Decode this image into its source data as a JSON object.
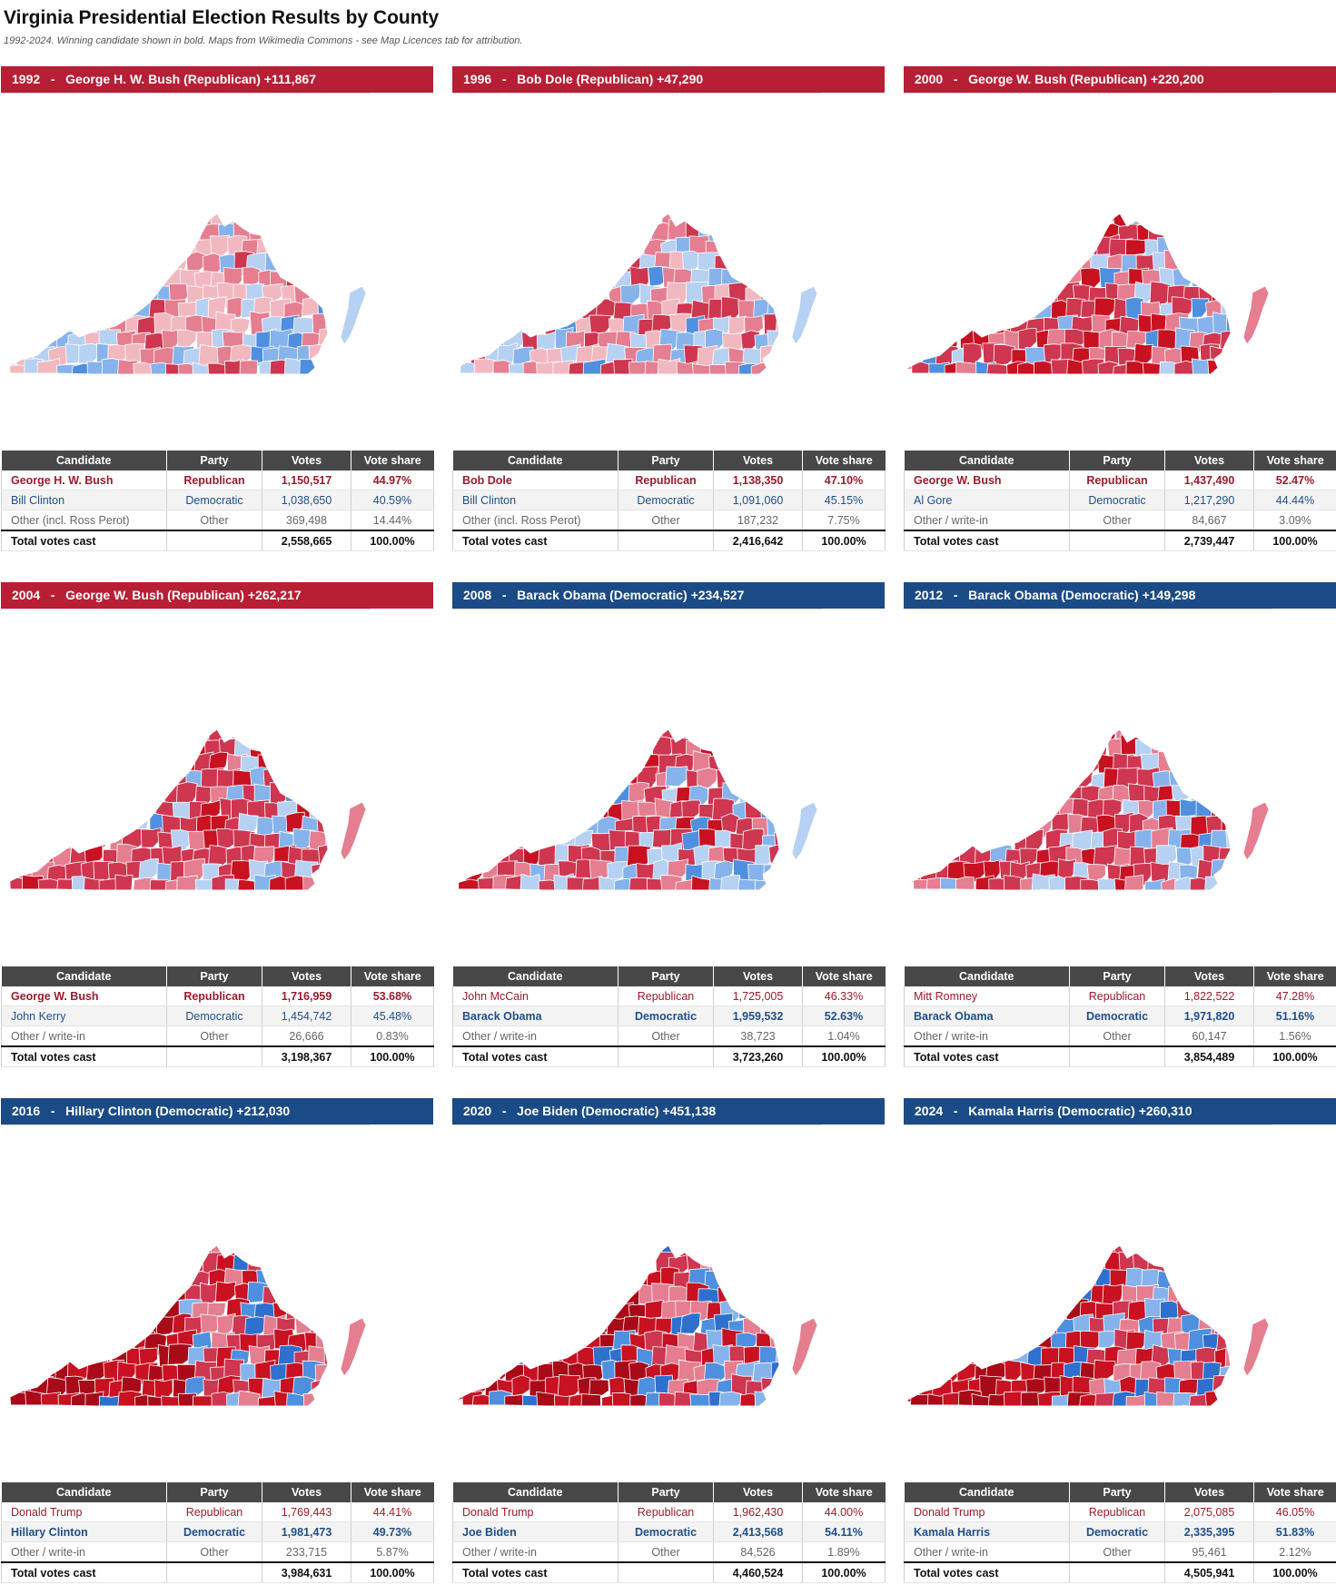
{
  "title": "Virginia Presidential Election Results by County",
  "subtitle": "1992-2024. Winning candidate shown in bold. Maps from Wikimedia Commons - see Map Licences tab for attribution.",
  "table_headers": [
    "Candidate",
    "Party",
    "Votes",
    "Vote share"
  ],
  "colors": {
    "republican": "#b81e34",
    "democratic": "#1b4b86",
    "header_gray": "#484848"
  },
  "map_palette": {
    "r_light": "#f2b8c0",
    "r_mid": "#e57e90",
    "r_strong": "#cf3650",
    "r_solid": "#c81121",
    "r_dark": "#a90a18",
    "d_light": "#b7d1f3",
    "d_mid": "#86b3ec",
    "d_strong": "#4f8fe0",
    "d_solid": "#2f6fce"
  },
  "panels": [
    {
      "year": "1992",
      "sep": "-",
      "headline": "George H. W. Bush (Republican) +111,867",
      "winner_party": "rep",
      "map_shade": 0.15,
      "rows": [
        {
          "candidate": "George H. W. Bush",
          "party": "Republican",
          "votes": "1,150,517",
          "share": "44.97%",
          "cls": "rep",
          "win": true
        },
        {
          "candidate": "Bill Clinton",
          "party": "Democratic",
          "votes": "1,038,650",
          "share": "40.59%",
          "cls": "dem",
          "win": false
        },
        {
          "candidate": "Other (incl. Ross Perot)",
          "party": "Other",
          "votes": "369,498",
          "share": "14.44%",
          "cls": "other",
          "win": false
        }
      ],
      "total_label": "Total votes cast",
      "total_votes": "2,558,665",
      "total_share": "100.00%"
    },
    {
      "year": "1996",
      "sep": "-",
      "headline": "Bob Dole (Republican) +47,290",
      "winner_party": "rep",
      "map_shade": 0.1,
      "rows": [
        {
          "candidate": "Bob Dole",
          "party": "Republican",
          "votes": "1,138,350",
          "share": "47.10%",
          "cls": "rep",
          "win": true
        },
        {
          "candidate": "Bill Clinton",
          "party": "Democratic",
          "votes": "1,091,060",
          "share": "45.15%",
          "cls": "dem",
          "win": false
        },
        {
          "candidate": "Other (incl. Ross Perot)",
          "party": "Other",
          "votes": "187,232",
          "share": "7.75%",
          "cls": "other",
          "win": false
        }
      ],
      "total_label": "Total votes cast",
      "total_votes": "2,416,642",
      "total_share": "100.00%"
    },
    {
      "year": "2000",
      "sep": "-",
      "headline": "George W. Bush (Republican) +220,200",
      "winner_party": "rep",
      "map_shade": 0.55,
      "rows": [
        {
          "candidate": "George W. Bush",
          "party": "Republican",
          "votes": "1,437,490",
          "share": "52.47%",
          "cls": "rep",
          "win": true
        },
        {
          "candidate": "Al Gore",
          "party": "Democratic",
          "votes": "1,217,290",
          "share": "44.44%",
          "cls": "dem",
          "win": false
        },
        {
          "candidate": "Other / write-in",
          "party": "Other",
          "votes": "84,667",
          "share": "3.09%",
          "cls": "other",
          "win": false
        }
      ],
      "total_label": "Total votes cast",
      "total_votes": "2,739,447",
      "total_share": "100.00%"
    },
    {
      "year": "2004",
      "sep": "-",
      "headline": "George W. Bush (Republican) +262,217",
      "winner_party": "rep",
      "map_shade": 0.6,
      "rows": [
        {
          "candidate": "George W. Bush",
          "party": "Republican",
          "votes": "1,716,959",
          "share": "53.68%",
          "cls": "rep",
          "win": true
        },
        {
          "candidate": "John Kerry",
          "party": "Democratic",
          "votes": "1,454,742",
          "share": "45.48%",
          "cls": "dem",
          "win": false
        },
        {
          "candidate": "Other / write-in",
          "party": "Other",
          "votes": "26,666",
          "share": "0.83%",
          "cls": "other",
          "win": false
        }
      ],
      "total_label": "Total votes cast",
      "total_votes": "3,198,367",
      "total_share": "100.00%"
    },
    {
      "year": "2008",
      "sep": "-",
      "headline": "Barack Obama (Democratic) +234,527",
      "winner_party": "dem",
      "map_shade": 0.45,
      "rows": [
        {
          "candidate": "John McCain",
          "party": "Republican",
          "votes": "1,725,005",
          "share": "46.33%",
          "cls": "rep",
          "win": false
        },
        {
          "candidate": "Barack Obama",
          "party": "Democratic",
          "votes": "1,959,532",
          "share": "52.63%",
          "cls": "dem",
          "win": true
        },
        {
          "candidate": "Other / write-in",
          "party": "Other",
          "votes": "38,723",
          "share": "1.04%",
          "cls": "other",
          "win": false
        }
      ],
      "total_label": "Total votes cast",
      "total_votes": "3,723,260",
      "total_share": "100.00%"
    },
    {
      "year": "2012",
      "sep": "-",
      "headline": "Barack Obama (Democratic) +149,298",
      "winner_party": "dem",
      "map_shade": 0.5,
      "rows": [
        {
          "candidate": "Mitt Romney",
          "party": "Republican",
          "votes": "1,822,522",
          "share": "47.28%",
          "cls": "rep",
          "win": false
        },
        {
          "candidate": "Barack Obama",
          "party": "Democratic",
          "votes": "1,971,820",
          "share": "51.16%",
          "cls": "dem",
          "win": true
        },
        {
          "candidate": "Other / write-in",
          "party": "Other",
          "votes": "60,147",
          "share": "1.56%",
          "cls": "other",
          "win": false
        }
      ],
      "total_label": "Total votes cast",
      "total_votes": "3,854,489",
      "total_share": "100.00%"
    },
    {
      "year": "2016",
      "sep": "-",
      "headline": "Hillary Clinton (Democratic) +212,030",
      "winner_party": "dem",
      "map_shade": 0.75,
      "rows": [
        {
          "candidate": "Donald Trump",
          "party": "Republican",
          "votes": "1,769,443",
          "share": "44.41%",
          "cls": "rep",
          "win": false
        },
        {
          "candidate": "Hillary Clinton",
          "party": "Democratic",
          "votes": "1,981,473",
          "share": "49.73%",
          "cls": "dem",
          "win": true
        },
        {
          "candidate": "Other / write-in",
          "party": "Other",
          "votes": "233,715",
          "share": "5.87%",
          "cls": "other",
          "win": false
        }
      ],
      "total_label": "Total votes cast",
      "total_votes": "3,984,631",
      "total_share": "100.00%"
    },
    {
      "year": "2020",
      "sep": "-",
      "headline": "Joe Biden (Democratic) +451,138",
      "winner_party": "dem",
      "map_shade": 0.85,
      "rows": [
        {
          "candidate": "Donald Trump",
          "party": "Republican",
          "votes": "1,962,430",
          "share": "44.00%",
          "cls": "rep",
          "win": false
        },
        {
          "candidate": "Joe Biden",
          "party": "Democratic",
          "votes": "2,413,568",
          "share": "54.11%",
          "cls": "dem",
          "win": true
        },
        {
          "candidate": "Other / write-in",
          "party": "Other",
          "votes": "84,526",
          "share": "1.89%",
          "cls": "other",
          "win": false
        }
      ],
      "total_label": "Total votes cast",
      "total_votes": "4,460,524",
      "total_share": "100.00%"
    },
    {
      "year": "2024",
      "sep": "-",
      "headline": "Kamala Harris (Democratic) +260,310",
      "winner_party": "dem",
      "map_shade": 0.85,
      "rows": [
        {
          "candidate": "Donald Trump",
          "party": "Republican",
          "votes": "2,075,085",
          "share": "46.05%",
          "cls": "rep",
          "win": false
        },
        {
          "candidate": "Kamala Harris",
          "party": "Democratic",
          "votes": "2,335,395",
          "share": "51.83%",
          "cls": "dem",
          "win": true
        },
        {
          "candidate": "Other / write-in",
          "party": "Other",
          "votes": "95,461",
          "share": "2.12%",
          "cls": "other",
          "win": false
        }
      ],
      "total_label": "Total votes cast",
      "total_votes": "4,505,941",
      "total_share": "100.00%"
    }
  ]
}
